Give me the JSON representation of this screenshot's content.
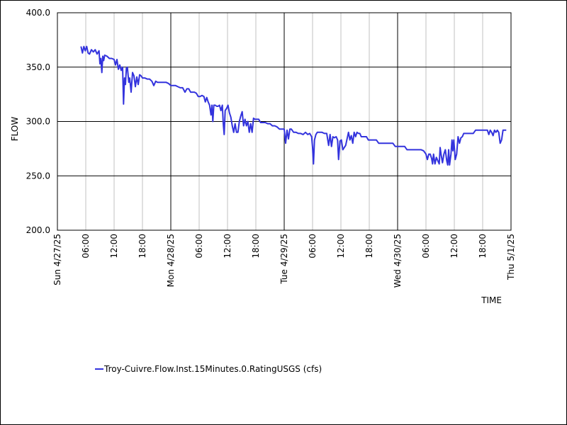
{
  "chart_data": {
    "type": "line",
    "title": "",
    "xlabel": "TIME",
    "ylabel": "FLOW",
    "ylim": [
      200,
      400
    ],
    "yticks": [
      "200.0",
      "250.0",
      "300.0",
      "350.0",
      "400.0"
    ],
    "x_range_hours": [
      0,
      96
    ],
    "xticks": [
      {
        "hour": 0,
        "label": "Sun 4/27/25",
        "major": true
      },
      {
        "hour": 6,
        "label": "06:00",
        "major": false
      },
      {
        "hour": 12,
        "label": "12:00",
        "major": false
      },
      {
        "hour": 18,
        "label": "18:00",
        "major": false
      },
      {
        "hour": 24,
        "label": "Mon 4/28/25",
        "major": true
      },
      {
        "hour": 30,
        "label": "06:00",
        "major": false
      },
      {
        "hour": 36,
        "label": "12:00",
        "major": false
      },
      {
        "hour": 42,
        "label": "18:00",
        "major": false
      },
      {
        "hour": 48,
        "label": "Tue 4/29/25",
        "major": true
      },
      {
        "hour": 54,
        "label": "06:00",
        "major": false
      },
      {
        "hour": 60,
        "label": "12:00",
        "major": false
      },
      {
        "hour": 66,
        "label": "18:00",
        "major": false
      },
      {
        "hour": 72,
        "label": "Wed 4/30/25",
        "major": true
      },
      {
        "hour": 78,
        "label": "06:00",
        "major": false
      },
      {
        "hour": 84,
        "label": "12:00",
        "major": false
      },
      {
        "hour": 90,
        "label": "18:00",
        "major": false
      },
      {
        "hour": 96,
        "label": "Thu 5/1/25",
        "major": true
      }
    ],
    "grid": true,
    "legend_position": "bottom-left",
    "series": [
      {
        "name": "Troy-Cuivre.Flow.Inst.15Minutes.0.RatingUSGS (cfs)",
        "color": "#3333dd",
        "points": [
          [
            5.0,
            369
          ],
          [
            5.3,
            363
          ],
          [
            5.6,
            369
          ],
          [
            5.9,
            365
          ],
          [
            6.2,
            369
          ],
          [
            6.5,
            363
          ],
          [
            6.8,
            362
          ],
          [
            7.2,
            366
          ],
          [
            7.6,
            364
          ],
          [
            8.0,
            366
          ],
          [
            8.4,
            362
          ],
          [
            8.8,
            365
          ],
          [
            9.0,
            353
          ],
          [
            9.2,
            358
          ],
          [
            9.4,
            345
          ],
          [
            9.6,
            360
          ],
          [
            9.8,
            356
          ],
          [
            10.0,
            361
          ],
          [
            10.5,
            360
          ],
          [
            11.0,
            358
          ],
          [
            11.5,
            358
          ],
          [
            12.0,
            357
          ],
          [
            12.3,
            352
          ],
          [
            12.6,
            357
          ],
          [
            12.9,
            348
          ],
          [
            13.2,
            352
          ],
          [
            13.5,
            347
          ],
          [
            13.8,
            350
          ],
          [
            14.0,
            316
          ],
          [
            14.2,
            340
          ],
          [
            14.4,
            334
          ],
          [
            14.6,
            349
          ],
          [
            14.8,
            350
          ],
          [
            15.1,
            336
          ],
          [
            15.3,
            340
          ],
          [
            15.6,
            327
          ],
          [
            15.9,
            345
          ],
          [
            16.2,
            342
          ],
          [
            16.5,
            332
          ],
          [
            16.8,
            341
          ],
          [
            17.1,
            334
          ],
          [
            17.4,
            343
          ],
          [
            17.7,
            342
          ],
          [
            18.0,
            340
          ],
          [
            18.5,
            340
          ],
          [
            19.0,
            339
          ],
          [
            19.5,
            339
          ],
          [
            20.0,
            337
          ],
          [
            20.4,
            333
          ],
          [
            20.8,
            337
          ],
          [
            21.2,
            336
          ],
          [
            21.6,
            336
          ],
          [
            22.0,
            336
          ],
          [
            22.5,
            336
          ],
          [
            23.0,
            336
          ],
          [
            23.5,
            335
          ],
          [
            24.0,
            333
          ],
          [
            24.5,
            333
          ],
          [
            25.0,
            333
          ],
          [
            25.5,
            332
          ],
          [
            26.0,
            331
          ],
          [
            26.5,
            331
          ],
          [
            27.0,
            327
          ],
          [
            27.4,
            330
          ],
          [
            27.8,
            330
          ],
          [
            28.2,
            327
          ],
          [
            28.6,
            327
          ],
          [
            29.0,
            327
          ],
          [
            29.4,
            326
          ],
          [
            29.8,
            323
          ],
          [
            30.2,
            323
          ],
          [
            30.6,
            324
          ],
          [
            31.0,
            323
          ],
          [
            31.3,
            318
          ],
          [
            31.6,
            322
          ],
          [
            31.9,
            318
          ],
          [
            32.2,
            315
          ],
          [
            32.5,
            306
          ],
          [
            32.7,
            315
          ],
          [
            32.9,
            300
          ],
          [
            33.1,
            315
          ],
          [
            33.4,
            315
          ],
          [
            33.7,
            314
          ],
          [
            34.0,
            314
          ],
          [
            34.3,
            315
          ],
          [
            34.6,
            310
          ],
          [
            34.9,
            315
          ],
          [
            35.1,
            298
          ],
          [
            35.3,
            288
          ],
          [
            35.5,
            310
          ],
          [
            35.8,
            312
          ],
          [
            36.1,
            315
          ],
          [
            36.4,
            308
          ],
          [
            36.7,
            304
          ],
          [
            37.0,
            296
          ],
          [
            37.3,
            290
          ],
          [
            37.6,
            298
          ],
          [
            37.9,
            290
          ],
          [
            38.2,
            290
          ],
          [
            38.5,
            300
          ],
          [
            38.8,
            305
          ],
          [
            39.1,
            309
          ],
          [
            39.4,
            296
          ],
          [
            39.7,
            302
          ],
          [
            40.0,
            296
          ],
          [
            40.3,
            300
          ],
          [
            40.6,
            290
          ],
          [
            40.9,
            298
          ],
          [
            41.2,
            290
          ],
          [
            41.5,
            303
          ],
          [
            41.8,
            302
          ],
          [
            42.2,
            302
          ],
          [
            42.6,
            302
          ],
          [
            43.0,
            299
          ],
          [
            43.5,
            299
          ],
          [
            44.0,
            299
          ],
          [
            44.5,
            298
          ],
          [
            45.0,
            298
          ],
          [
            45.5,
            296
          ],
          [
            46.0,
            296
          ],
          [
            46.5,
            295
          ],
          [
            47.0,
            293
          ],
          [
            47.5,
            293
          ],
          [
            48.0,
            293
          ],
          [
            48.3,
            280
          ],
          [
            48.6,
            292
          ],
          [
            48.9,
            284
          ],
          [
            49.2,
            293
          ],
          [
            49.5,
            293
          ],
          [
            50.0,
            290
          ],
          [
            50.5,
            290
          ],
          [
            51.0,
            289
          ],
          [
            51.5,
            289
          ],
          [
            52.0,
            288
          ],
          [
            52.5,
            290
          ],
          [
            53.0,
            288
          ],
          [
            53.4,
            289
          ],
          [
            53.8,
            286
          ],
          [
            54.0,
            276
          ],
          [
            54.2,
            261
          ],
          [
            54.4,
            283
          ],
          [
            54.7,
            288
          ],
          [
            55.0,
            290
          ],
          [
            55.5,
            290
          ],
          [
            56.0,
            290
          ],
          [
            56.5,
            289
          ],
          [
            57.0,
            289
          ],
          [
            57.4,
            278
          ],
          [
            57.7,
            288
          ],
          [
            58.0,
            277
          ],
          [
            58.3,
            286
          ],
          [
            58.6,
            285
          ],
          [
            59.0,
            286
          ],
          [
            59.3,
            283
          ],
          [
            59.5,
            265
          ],
          [
            59.8,
            282
          ],
          [
            60.1,
            283
          ],
          [
            60.4,
            274
          ],
          [
            60.7,
            276
          ],
          [
            61.0,
            278
          ],
          [
            61.3,
            284
          ],
          [
            61.6,
            290
          ],
          [
            61.9,
            283
          ],
          [
            62.2,
            287
          ],
          [
            62.5,
            280
          ],
          [
            62.8,
            290
          ],
          [
            63.1,
            286
          ],
          [
            63.4,
            290
          ],
          [
            63.7,
            289
          ],
          [
            64.0,
            289
          ],
          [
            64.3,
            286
          ],
          [
            64.6,
            286
          ],
          [
            65.0,
            286
          ],
          [
            65.4,
            286
          ],
          [
            65.8,
            283
          ],
          [
            66.2,
            283
          ],
          [
            66.6,
            283
          ],
          [
            67.0,
            283
          ],
          [
            67.5,
            283
          ],
          [
            68.0,
            280
          ],
          [
            68.5,
            280
          ],
          [
            69.0,
            280
          ],
          [
            69.5,
            280
          ],
          [
            70.0,
            280
          ],
          [
            70.5,
            280
          ],
          [
            71.0,
            280
          ],
          [
            71.5,
            277
          ],
          [
            72.0,
            277
          ],
          [
            72.5,
            277
          ],
          [
            73.0,
            277
          ],
          [
            73.5,
            277
          ],
          [
            74.0,
            274
          ],
          [
            74.5,
            274
          ],
          [
            75.0,
            274
          ],
          [
            75.5,
            274
          ],
          [
            76.0,
            274
          ],
          [
            76.5,
            274
          ],
          [
            77.0,
            274
          ],
          [
            77.5,
            273
          ],
          [
            78.0,
            270
          ],
          [
            78.3,
            265
          ],
          [
            78.6,
            270
          ],
          [
            78.9,
            270
          ],
          [
            79.2,
            266
          ],
          [
            79.4,
            261
          ],
          [
            79.6,
            270
          ],
          [
            79.9,
            261
          ],
          [
            80.2,
            267
          ],
          [
            80.5,
            264
          ],
          [
            80.8,
            261
          ],
          [
            81.0,
            276
          ],
          [
            81.2,
            270
          ],
          [
            81.5,
            262
          ],
          [
            81.8,
            270
          ],
          [
            82.1,
            274
          ],
          [
            82.4,
            264
          ],
          [
            82.6,
            260
          ],
          [
            82.8,
            274
          ],
          [
            83.0,
            260
          ],
          [
            83.3,
            270
          ],
          [
            83.5,
            283
          ],
          [
            83.7,
            273
          ],
          [
            83.9,
            283
          ],
          [
            84.2,
            265
          ],
          [
            84.5,
            270
          ],
          [
            84.8,
            286
          ],
          [
            85.1,
            280
          ],
          [
            85.4,
            285
          ],
          [
            85.7,
            286
          ],
          [
            86.0,
            289
          ],
          [
            86.5,
            289
          ],
          [
            87.0,
            289
          ],
          [
            87.5,
            289
          ],
          [
            88.0,
            289
          ],
          [
            88.5,
            292
          ],
          [
            89.0,
            292
          ],
          [
            89.5,
            292
          ],
          [
            90.0,
            292
          ],
          [
            90.5,
            292
          ],
          [
            91.0,
            292
          ],
          [
            91.3,
            288
          ],
          [
            91.6,
            292
          ],
          [
            91.9,
            290
          ],
          [
            92.2,
            287
          ],
          [
            92.5,
            292
          ],
          [
            92.8,
            290
          ],
          [
            93.1,
            292
          ],
          [
            93.4,
            290
          ],
          [
            93.7,
            280
          ],
          [
            94.0,
            283
          ],
          [
            94.3,
            292
          ],
          [
            94.6,
            292
          ],
          [
            95.0,
            292
          ]
        ]
      }
    ]
  }
}
